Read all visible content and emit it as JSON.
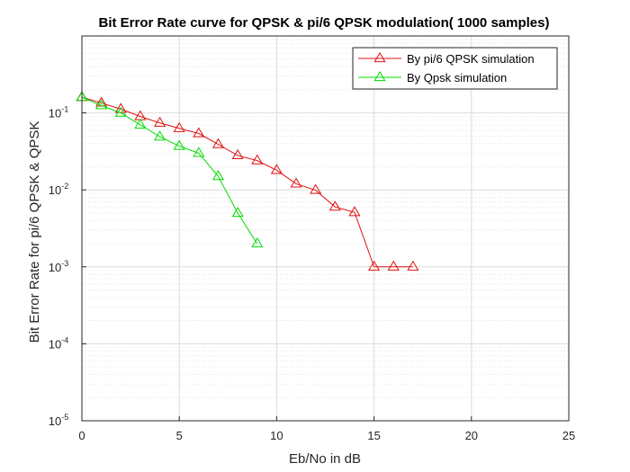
{
  "chart_data": {
    "type": "line",
    "title": "Bit Error Rate curve for QPSK & pi/6 QPSK modulation( 1000 samples)",
    "xlabel": "Eb/No in dB",
    "ylabel": "Bit Error Rate for pi/6 QPSK & QPSK",
    "xlim": [
      0,
      25
    ],
    "ylim": [
      1e-05,
      1
    ],
    "yscale": "log",
    "grid": true,
    "minor_grid": true,
    "legend_position": "top-right",
    "x_ticks": [
      "0",
      "5",
      "10",
      "15",
      "20",
      "25"
    ],
    "y_ticks": [
      {
        "base": "10",
        "exp": "-5"
      },
      {
        "base": "10",
        "exp": "-4"
      },
      {
        "base": "10",
        "exp": "-3"
      },
      {
        "base": "10",
        "exp": "-2"
      },
      {
        "base": "10",
        "exp": "-1"
      }
    ],
    "series": [
      {
        "name": "By pi/6 QPSK simulation",
        "color": "#e01010",
        "marker": "triangle",
        "x": [
          0,
          1,
          2,
          3,
          4,
          5,
          6,
          7,
          8,
          9,
          10,
          11,
          12,
          13,
          14,
          15,
          16,
          17
        ],
        "y": [
          0.16,
          0.135,
          0.112,
          0.09,
          0.074,
          0.063,
          0.054,
          0.039,
          0.028,
          0.024,
          0.018,
          0.012,
          0.0099,
          0.006,
          0.0051,
          0.001,
          0.001,
          0.001
        ]
      },
      {
        "name": "By Qpsk simulation",
        "color": "#00dd00",
        "marker": "triangle",
        "x": [
          0,
          1,
          2,
          3,
          4,
          5,
          6,
          7,
          8,
          9
        ],
        "y": [
          0.16,
          0.125,
          0.1,
          0.07,
          0.049,
          0.037,
          0.03,
          0.015,
          0.005,
          0.002
        ]
      }
    ]
  }
}
